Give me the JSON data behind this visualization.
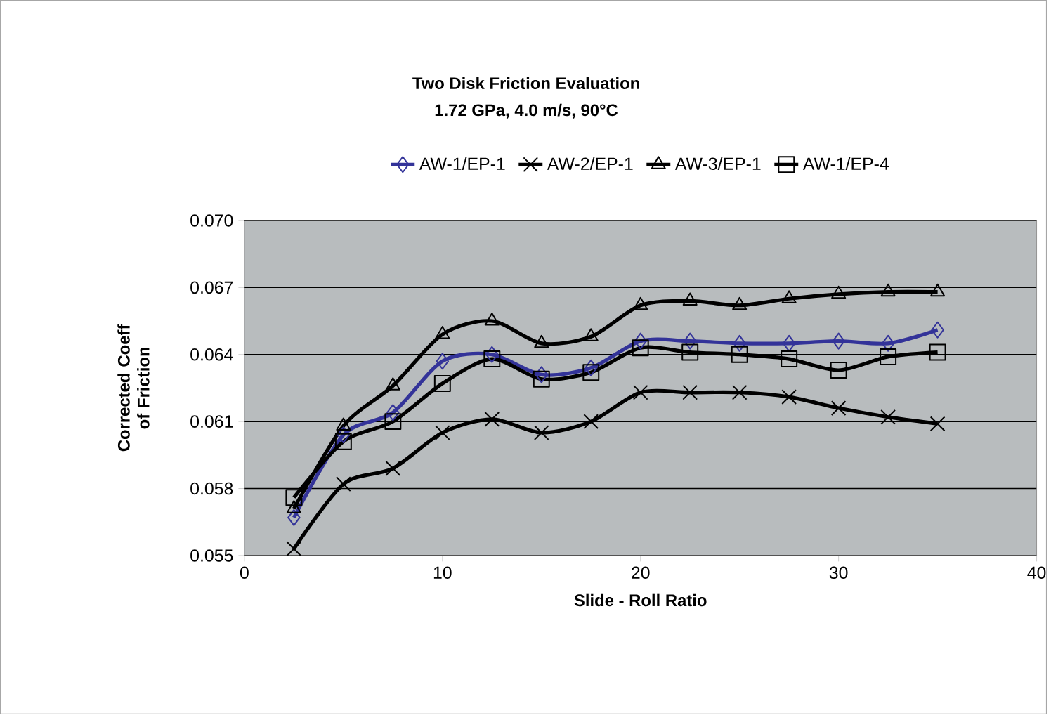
{
  "chart_data": {
    "type": "line",
    "title": "Two Disk Friction Evaluation",
    "subtitle": "1.72 GPa, 4.0 m/s, 90°C",
    "xlabel": "Slide - Roll Ratio",
    "ylabel": "Corrected Coeff of Friction",
    "x": [
      2.5,
      5,
      7.5,
      10,
      12.5,
      15,
      17.5,
      20,
      22.5,
      25,
      27.5,
      30,
      32.5,
      35
    ],
    "series": [
      {
        "name": "AW-1/EP-1",
        "color": "#333399",
        "marker": "diamond",
        "values": [
          0.0567,
          0.0604,
          0.0614,
          0.0637,
          0.064,
          0.0631,
          0.0634,
          0.0646,
          0.0646,
          0.0645,
          0.0645,
          0.0646,
          0.0645,
          0.0651
        ]
      },
      {
        "name": "AW-2/EP-1",
        "color": "#000000",
        "marker": "cross",
        "values": [
          0.0553,
          0.0582,
          0.0589,
          0.0605,
          0.0611,
          0.0605,
          0.061,
          0.0623,
          0.0623,
          0.0623,
          0.0621,
          0.0616,
          0.0612,
          0.0609
        ]
      },
      {
        "name": "AW-3/EP-1",
        "color": "#000000",
        "marker": "triangle",
        "values": [
          0.0571,
          0.0608,
          0.0626,
          0.0649,
          0.0655,
          0.0645,
          0.0648,
          0.0662,
          0.0664,
          0.0662,
          0.0665,
          0.0667,
          0.0668,
          0.0668
        ]
      },
      {
        "name": "AW-1/EP-4",
        "color": "#000000",
        "marker": "square",
        "values": [
          0.0576,
          0.0601,
          0.061,
          0.0627,
          0.0638,
          0.0629,
          0.0632,
          0.0643,
          0.0641,
          0.064,
          0.0638,
          0.0633,
          0.0639,
          0.0641
        ]
      }
    ],
    "xlim": [
      0,
      40
    ],
    "xticks": [
      0,
      10,
      20,
      30,
      40
    ],
    "ylim": [
      0.055,
      0.07
    ],
    "yticks": [
      {
        "value": 0.055,
        "label": "0.055"
      },
      {
        "value": 0.058,
        "label": "0.058"
      },
      {
        "value": 0.061,
        "label": "0.061"
      },
      {
        "value": 0.064,
        "label": "0.064"
      },
      {
        "value": 0.067,
        "label": "0.067"
      },
      {
        "value": 0.07,
        "label": "0.070"
      }
    ],
    "grid": "y",
    "legend": "top",
    "line_style": "solid"
  }
}
